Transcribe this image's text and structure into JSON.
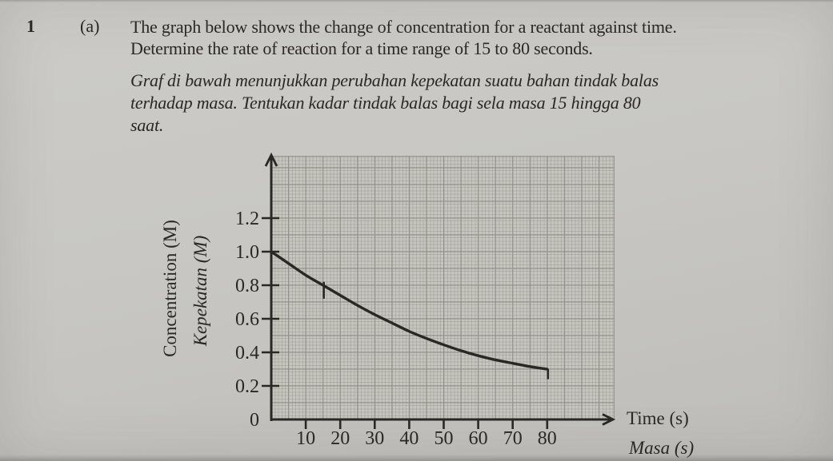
{
  "page": {
    "question_number": "1",
    "part_label": "(a)",
    "question_en_lines": [
      "The graph below shows the change of concentration for a reactant against time.",
      "Determine the rate of reaction for a time range of 15 to 80 seconds."
    ],
    "question_ms_lines": [
      "Graf di bawah menunjukkan perubahan kepekatan suatu bahan tindak balas",
      "terhadap masa. Tentukan kadar tindak balas bagi sela masa 15 hingga 80",
      "saat."
    ]
  },
  "chart_data": {
    "type": "line",
    "title": "",
    "xlabel_en": "Time (s)",
    "xlabel_ms": "Masa (s)",
    "ylabel_en": "Concentration (M)",
    "ylabel_ms": "Kepekatan (M)",
    "x_tick_values": [
      10,
      20,
      30,
      40,
      50,
      60,
      70,
      80
    ],
    "x_tick_labels": [
      "10",
      "20",
      "30",
      "40",
      "50",
      "60",
      "70",
      "80"
    ],
    "y_tick_values": [
      0,
      0.2,
      0.4,
      0.6,
      0.8,
      1.0,
      1.2
    ],
    "y_tick_labels": [
      "0",
      "0.2",
      "0.4",
      "0.6",
      "0.8",
      "1.0",
      "1.2"
    ],
    "xlim": [
      0,
      99
    ],
    "ylim": [
      0,
      1.57
    ],
    "grid": {
      "x_major": 5,
      "y_major": 0.1,
      "x_minor": 1,
      "y_minor": 0.02,
      "visible": true
    },
    "series": [
      {
        "name": "reactant-concentration",
        "x": [
          0,
          5,
          10,
          15,
          20,
          25,
          30,
          35,
          40,
          45,
          50,
          55,
          60,
          65,
          70,
          75,
          80
        ],
        "y": [
          1.0,
          0.93,
          0.86,
          0.8,
          0.74,
          0.68,
          0.625,
          0.575,
          0.525,
          0.483,
          0.445,
          0.41,
          0.38,
          0.355,
          0.335,
          0.315,
          0.3
        ]
      }
    ],
    "markers": [
      {
        "name": "reading-dash-at-15s",
        "t": 15,
        "c_from": 0.82,
        "c_to": 0.72
      },
      {
        "name": "end-drop-at-80s",
        "t": 80,
        "c_from": 0.3,
        "c_to": 0.24
      }
    ]
  },
  "colors": {
    "paper": "#c8c7c3",
    "ink": "#2a2824",
    "grid_fill": "#c6c5bf",
    "grid_major_line": "#90908a",
    "grid_minor_line": "#aaa9a2"
  }
}
